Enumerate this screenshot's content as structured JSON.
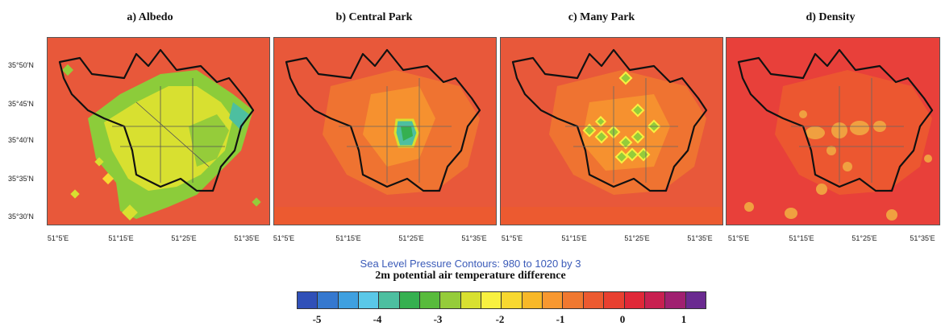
{
  "panels": [
    {
      "title": "a) Albedo"
    },
    {
      "title": "b) Central Park"
    },
    {
      "title": "c) Many Park"
    },
    {
      "title": "d) Density"
    }
  ],
  "y_ticks": [
    "35°50'N",
    "35°45'N",
    "35°40'N",
    "35°35'N",
    "35°30'N"
  ],
  "x_ticks": [
    "51°5'E",
    "51°15'E",
    "51°25'E",
    "51°35'E"
  ],
  "caption_contours": "Sea Level Pressure Contours: 980 to 1020 by 3",
  "caption_variable": "2m potential air temperature difference",
  "colorbar": {
    "colors": [
      "#3050b8",
      "#3578cf",
      "#3fa0e0",
      "#5ac8e8",
      "#4dbfa0",
      "#35b050",
      "#58bb3c",
      "#95cc3a",
      "#d8e030",
      "#f8f040",
      "#f8d830",
      "#f8b828",
      "#f89830",
      "#f07830",
      "#ec5a30",
      "#e84030",
      "#e02838",
      "#c82050",
      "#a02070",
      "#6a2a90"
    ],
    "labels": [
      "-5",
      "-4",
      "-3",
      "-2",
      "-1",
      "0",
      "1"
    ]
  },
  "legend_colors": {
    "background": "#e8583a",
    "city_boundary": "#111111",
    "districts": "#555555",
    "albedo_cool": "#d8e030",
    "albedo_cooler": "#8ccc3a",
    "orange_warm": "#f0a040"
  }
}
